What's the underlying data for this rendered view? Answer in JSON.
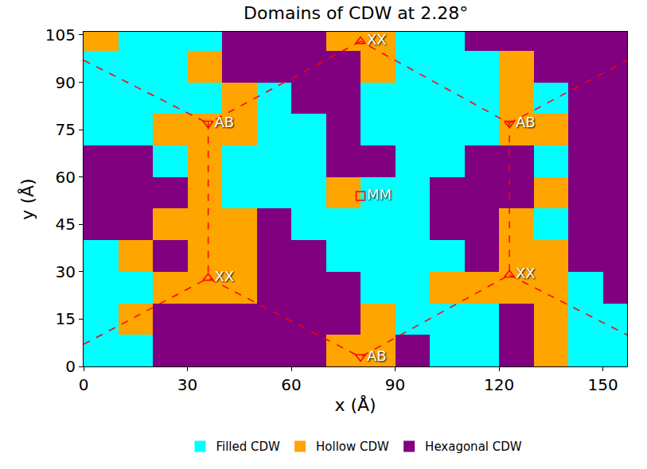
{
  "chart_data": {
    "type": "heatmap",
    "title": "Domains of CDW at 2.28°",
    "x_label": "x (Å)",
    "y_label": "y (Å)",
    "xlim": [
      0,
      157
    ],
    "ylim": [
      0,
      106
    ],
    "xticks": [
      0,
      30,
      60,
      90,
      120,
      150
    ],
    "yticks": [
      0,
      15,
      30,
      45,
      60,
      75,
      90,
      105
    ],
    "legend": "bottom",
    "series": [
      {
        "name": "Filled CDW",
        "color": "#00ffff"
      },
      {
        "name": "Hollow CDW",
        "color": "#ffa500"
      },
      {
        "name": "Hexagonal CDW",
        "color": "#800080"
      }
    ],
    "x": [
      5,
      15,
      25,
      35,
      45,
      55,
      65,
      75,
      85,
      95,
      105,
      115,
      125,
      135,
      145,
      155
    ],
    "y": [
      5,
      15,
      25,
      35,
      45,
      55,
      65,
      75,
      85,
      95,
      105
    ],
    "cells": [
      [
        0,
        0,
        2,
        2,
        2,
        2,
        2,
        1,
        1,
        2,
        0,
        0,
        2,
        1,
        0,
        0
      ],
      [
        0,
        1,
        2,
        2,
        2,
        2,
        2,
        2,
        1,
        0,
        0,
        0,
        2,
        1,
        0,
        0
      ],
      [
        0,
        0,
        1,
        1,
        1,
        2,
        2,
        2,
        0,
        0,
        1,
        1,
        1,
        1,
        0,
        2
      ],
      [
        0,
        1,
        2,
        1,
        1,
        2,
        2,
        0,
        0,
        0,
        0,
        2,
        1,
        1,
        2,
        2
      ],
      [
        2,
        2,
        1,
        1,
        1,
        2,
        0,
        0,
        0,
        0,
        2,
        2,
        1,
        0,
        2,
        2
      ],
      [
        2,
        2,
        2,
        1,
        0,
        0,
        0,
        1,
        0,
        0,
        2,
        2,
        2,
        1,
        2,
        2
      ],
      [
        2,
        2,
        0,
        1,
        0,
        0,
        0,
        2,
        2,
        0,
        0,
        2,
        2,
        0,
        2,
        2
      ],
      [
        0,
        0,
        1,
        1,
        1,
        0,
        0,
        2,
        0,
        0,
        0,
        0,
        1,
        1,
        2,
        2
      ],
      [
        0,
        0,
        0,
        0,
        1,
        0,
        2,
        2,
        0,
        0,
        0,
        0,
        1,
        0,
        2,
        2
      ],
      [
        0,
        0,
        0,
        1,
        2,
        2,
        2,
        2,
        1,
        0,
        0,
        0,
        1,
        2,
        2,
        2
      ],
      [
        1,
        0,
        0,
        0,
        2,
        2,
        2,
        1,
        1,
        0,
        0,
        2,
        2,
        2,
        2,
        2
      ]
    ],
    "lines": {
      "color": "#ff0000",
      "line_style": "dash",
      "x": [
        80,
        36,
        36,
        80,
        123,
        123,
        80,
        null,
        0,
        36,
        null,
        0,
        36,
        null,
        123,
        157,
        null,
        123,
        157
      ],
      "y": [
        103,
        77,
        28,
        3,
        29,
        77,
        103,
        null,
        97,
        77,
        null,
        7,
        28,
        null,
        29,
        10,
        null,
        77,
        97
      ]
    },
    "points": [
      {
        "name": "XX",
        "marker": "triangle-up-open",
        "color": "#ff0000",
        "x": [
          36,
          123,
          80
        ],
        "y": [
          28,
          29,
          103
        ]
      },
      {
        "name": "AB",
        "marker": "triangle-down-open",
        "color": "#ff0000",
        "x": [
          36,
          123,
          80
        ],
        "y": [
          77,
          77,
          3
        ]
      },
      {
        "name": "MM",
        "marker": "square-open",
        "color": "#ff0000",
        "x": [
          80
        ],
        "y": [
          54
        ]
      }
    ]
  }
}
